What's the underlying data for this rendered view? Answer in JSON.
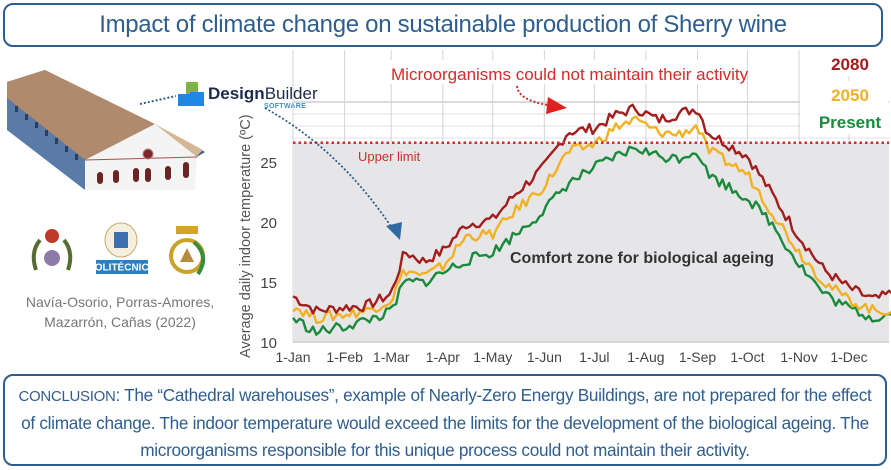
{
  "header": {
    "title": "Impact of climate change on sustainable production of Sherry wine"
  },
  "left_panel": {
    "software_logo": {
      "name_bold": "Design",
      "name_regular": "Builder",
      "sub": "SOFTWARE"
    },
    "crest_labels": [
      "POLITÉCNICA"
    ],
    "authors_line1": "Navía-Osorio, Porras-Amores,",
    "authors_line2": "Mazarrón, Cañas (2022)"
  },
  "conclusion": {
    "lead": "CONCLUSION",
    "text": ": The “Cathedral warehouses”, example of Nearly-Zero Energy Buildings, are not prepared for the effect of climate change. The indoor temperature would exceed the limits for the development of the biological ageing. The microorganisms responsible for this unique process could not maintain their activity."
  },
  "colors": {
    "accent": "#2f5e8e",
    "c2080": "#a31d1d",
    "c2050": "#f2b124",
    "present": "#1a8a3c",
    "limit": "#d42a2a"
  },
  "chart_data": {
    "type": "line",
    "title": "",
    "xlabel": "",
    "ylabel": "Average daily indoor temperature (ºC)",
    "ylim": [
      10,
      30
    ],
    "yticks": [
      10,
      15,
      20,
      25
    ],
    "xticks": [
      "1-Jan",
      "1-Feb",
      "1-Mar",
      "1-Apr",
      "1-May",
      "1-Jun",
      "1-Jul",
      "1-Aug",
      "1-Sep",
      "1-Oct",
      "1-Nov",
      "1-Dec"
    ],
    "x_unit": "day of year",
    "grid": true,
    "legend_position": "top-right",
    "upper_limit": {
      "value": 26.6,
      "label": "Upper limit"
    },
    "annotations": [
      {
        "text": "Microorganisms could not maintain their activity",
        "color": "#d42a2a"
      },
      {
        "text": "Comfort zone for biological ageing",
        "color": "#333333"
      }
    ],
    "x": [
      1,
      15,
      32,
      45,
      60,
      68,
      80,
      91,
      105,
      121,
      135,
      152,
      166,
      182,
      196,
      207,
      220,
      232,
      244,
      250,
      262,
      274,
      288,
      305,
      320,
      335,
      350,
      365
    ],
    "series": [
      {
        "name": "2080",
        "values": [
          13.8,
          12.6,
          12.9,
          13.0,
          14.0,
          17.5,
          16.7,
          17.6,
          19.8,
          20.2,
          22.4,
          24.6,
          27.5,
          27.8,
          29.0,
          29.5,
          28.5,
          29.0,
          29.5,
          27.5,
          26.5,
          25.5,
          22.5,
          18.8,
          16.0,
          14.5,
          13.5,
          14.3
        ]
      },
      {
        "name": "2050",
        "values": [
          13.0,
          12.0,
          12.3,
          12.6,
          13.5,
          16.0,
          15.5,
          16.3,
          18.8,
          19.0,
          21.0,
          23.0,
          25.8,
          26.5,
          28.0,
          28.5,
          27.5,
          27.3,
          28.0,
          26.0,
          25.0,
          24.0,
          21.0,
          17.5,
          15.0,
          13.5,
          12.6,
          12.7
        ]
      },
      {
        "name": "Present",
        "values": [
          12.0,
          10.8,
          11.3,
          11.8,
          12.5,
          15.0,
          15.0,
          15.8,
          16.8,
          17.5,
          19.0,
          21.0,
          23.2,
          24.5,
          25.5,
          26.2,
          25.5,
          25.3,
          26.0,
          24.0,
          23.0,
          22.0,
          20.0,
          16.5,
          14.0,
          12.8,
          12.0,
          12.5
        ]
      }
    ]
  }
}
